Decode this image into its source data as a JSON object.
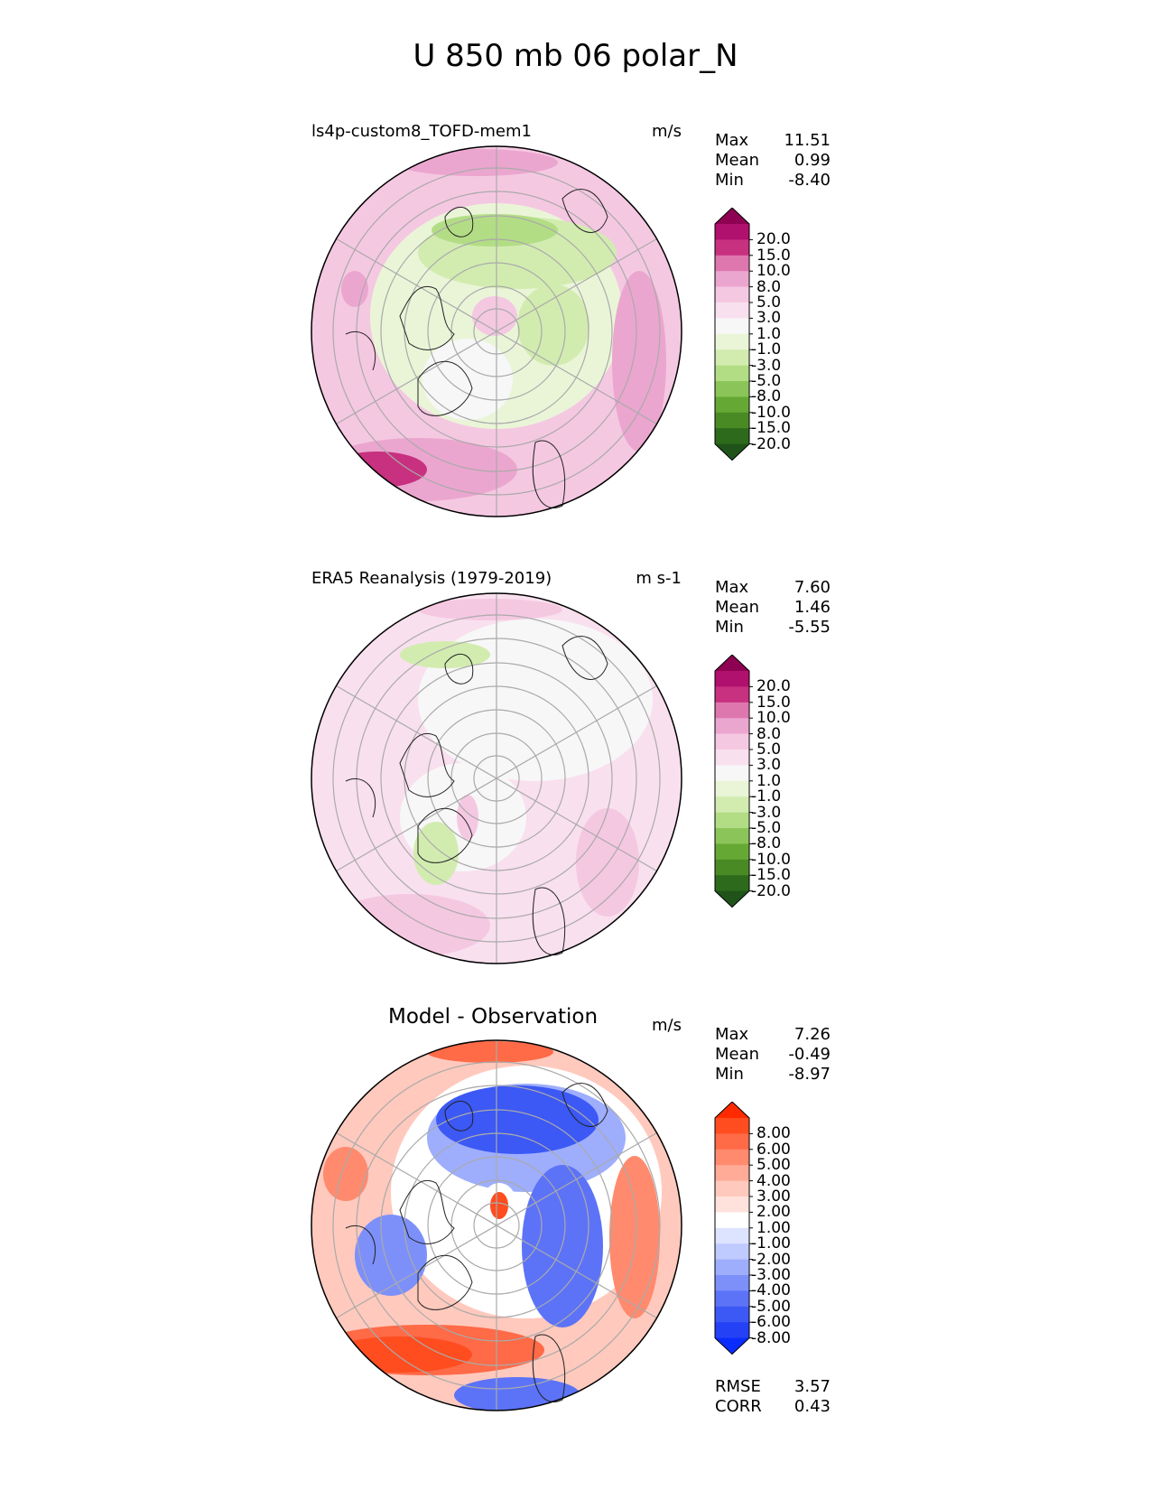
{
  "title": "U 850 mb 06 polar_N",
  "panels": [
    {
      "title": "ls4p-custom8_TOFD-mem1",
      "units": "m/s",
      "stats": {
        "max_label": "Max",
        "max": "11.51",
        "mean_label": "Mean",
        "mean": "0.99",
        "min_label": "Min",
        "min": "-8.40"
      },
      "colorbar_labels": [
        "20.0",
        "15.0",
        "10.0",
        "8.0",
        "5.0",
        "3.0",
        "1.0",
        "-1.0",
        "-3.0",
        "-5.0",
        "-8.0",
        "-10.0",
        "-15.0",
        "-20.0"
      ],
      "colors": [
        "#8e0152",
        "#b0106e",
        "#c7317f",
        "#de77ae",
        "#eba6cf",
        "#f5c8e2",
        "#f9e0ee",
        "#f7f7f7",
        "#eaf5d8",
        "#d2ecb0",
        "#b2dd85",
        "#8bc559",
        "#66a834",
        "#4a8a24",
        "#2d6a1c",
        "#1f531a"
      ],
      "center_hex": "#f7f7f7"
    },
    {
      "title": "ERA5 Reanalysis (1979-2019)",
      "units": "m s-1",
      "stats": {
        "max_label": "Max",
        "max": "7.60",
        "mean_label": "Mean",
        "mean": "1.46",
        "min_label": "Min",
        "min": "-5.55"
      },
      "colorbar_labels": [
        "20.0",
        "15.0",
        "10.0",
        "8.0",
        "5.0",
        "3.0",
        "1.0",
        "-1.0",
        "-3.0",
        "-5.0",
        "-8.0",
        "-10.0",
        "-15.0",
        "-20.0"
      ],
      "colors": [
        "#8e0152",
        "#b0106e",
        "#c7317f",
        "#de77ae",
        "#eba6cf",
        "#f5c8e2",
        "#f9e0ee",
        "#f7f7f7",
        "#eaf5d8",
        "#d2ecb0",
        "#b2dd85",
        "#8bc559",
        "#66a834",
        "#4a8a24",
        "#2d6a1c",
        "#1f531a"
      ],
      "center_hex": "#f7f7f7"
    },
    {
      "title": "Model - Observation",
      "units": "m/s",
      "stats": {
        "max_label": "Max",
        "max": "7.26",
        "mean_label": "Mean",
        "mean": "-0.49",
        "min_label": "Min",
        "min": "-8.97"
      },
      "colorbar_labels": [
        "8.00",
        "6.00",
        "5.00",
        "4.00",
        "3.00",
        "2.00",
        "1.00",
        "-1.00",
        "-2.00",
        "-3.00",
        "-4.00",
        "-5.00",
        "-6.00",
        "-8.00"
      ],
      "colors": [
        "#ff2a00",
        "#ff4d1f",
        "#ff6a47",
        "#ff8a6e",
        "#ffab98",
        "#ffc9bd",
        "#ffe2db",
        "#ffffff",
        "#dde4ff",
        "#bfcaff",
        "#9eaefc",
        "#7d90fa",
        "#5c73f7",
        "#3c58f5",
        "#2441f5",
        "#0a2cff"
      ],
      "center_hex": "#ffffff"
    }
  ],
  "error_stats": {
    "rmse_label": "RMSE",
    "rmse": "3.57",
    "corr_label": "CORR",
    "corr": "0.43"
  }
}
